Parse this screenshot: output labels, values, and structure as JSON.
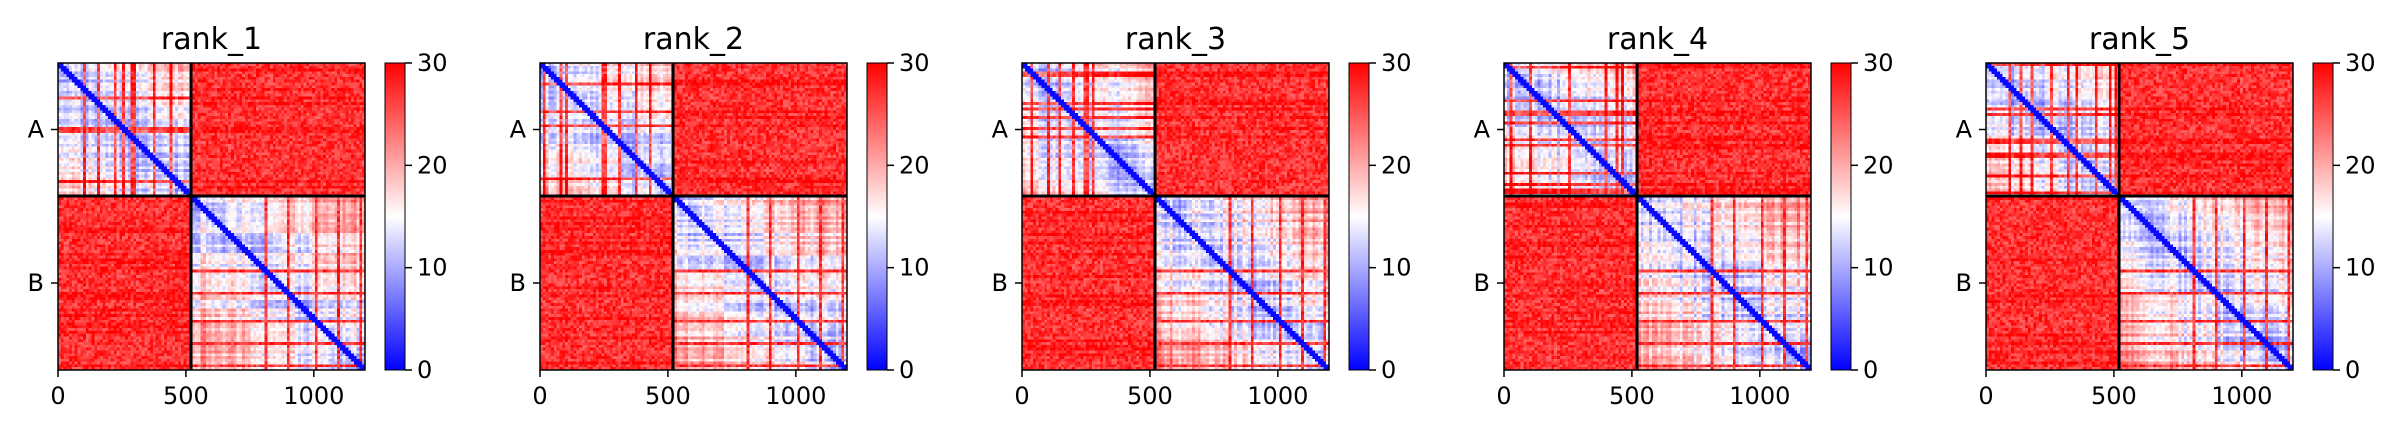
{
  "chart_data": [
    {
      "type": "heatmap",
      "title": "rank_1",
      "chains": [
        "A",
        "B"
      ],
      "chain_boundary": 520,
      "x_range": [
        0,
        1200
      ],
      "x_ticks": [
        0,
        500,
        1000
      ],
      "x_tick_labels": [
        "0",
        "500",
        "1000"
      ],
      "colorbar": {
        "min": 0,
        "max": 30,
        "ticks": [
          "0",
          "10",
          "20",
          "30"
        ],
        "colormap": "bwr"
      },
      "grid": false
    },
    {
      "type": "heatmap",
      "title": "rank_2",
      "chains": [
        "A",
        "B"
      ],
      "chain_boundary": 520,
      "x_range": [
        0,
        1200
      ],
      "x_ticks": [
        0,
        500,
        1000
      ],
      "x_tick_labels": [
        "0",
        "500",
        "1000"
      ],
      "colorbar": {
        "min": 0,
        "max": 30,
        "ticks": [
          "0",
          "10",
          "20",
          "30"
        ],
        "colormap": "bwr"
      },
      "grid": false
    },
    {
      "type": "heatmap",
      "title": "rank_3",
      "chains": [
        "A",
        "B"
      ],
      "chain_boundary": 520,
      "x_range": [
        0,
        1200
      ],
      "x_ticks": [
        0,
        500,
        1000
      ],
      "x_tick_labels": [
        "0",
        "500",
        "1000"
      ],
      "colorbar": {
        "min": 0,
        "max": 30,
        "ticks": [
          "0",
          "10",
          "20",
          "30"
        ],
        "colormap": "bwr"
      },
      "grid": false
    },
    {
      "type": "heatmap",
      "title": "rank_4",
      "chains": [
        "A",
        "B"
      ],
      "chain_boundary": 520,
      "x_range": [
        0,
        1200
      ],
      "x_ticks": [
        0,
        500,
        1000
      ],
      "x_tick_labels": [
        "0",
        "500",
        "1000"
      ],
      "colorbar": {
        "min": 0,
        "max": 30,
        "ticks": [
          "0",
          "10",
          "20",
          "30"
        ],
        "colormap": "bwr"
      },
      "grid": false
    },
    {
      "type": "heatmap",
      "title": "rank_5",
      "chains": [
        "A",
        "B"
      ],
      "chain_boundary": 520,
      "x_range": [
        0,
        1200
      ],
      "x_ticks": [
        0,
        500,
        1000
      ],
      "x_tick_labels": [
        "0",
        "500",
        "1000"
      ],
      "colorbar": {
        "min": 0,
        "max": 30,
        "ticks": [
          "0",
          "10",
          "20",
          "30"
        ],
        "colormap": "bwr"
      },
      "grid": false
    }
  ],
  "colors": {
    "low": "#0000ff",
    "mid": "#ffffff",
    "high": "#ff0000"
  }
}
